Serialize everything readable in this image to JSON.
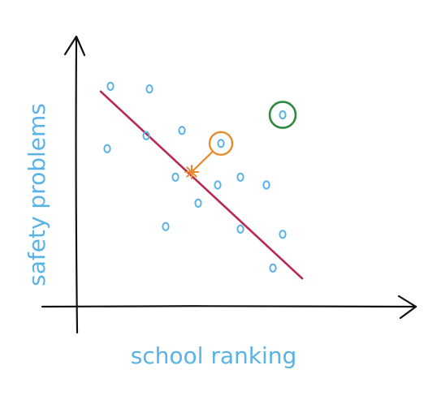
{
  "chart_data": {
    "type": "scatter",
    "title": "",
    "xlabel": "school ranking",
    "ylabel": "safety problems",
    "grid": false,
    "legend": "none",
    "xlim": [
      0,
      100
    ],
    "ylim": [
      0,
      100
    ],
    "points": [
      {
        "x": 9,
        "y": 83
      },
      {
        "x": 21,
        "y": 82
      },
      {
        "x": 8,
        "y": 59
      },
      {
        "x": 20,
        "y": 64
      },
      {
        "x": 31,
        "y": 66
      },
      {
        "x": 29,
        "y": 48
      },
      {
        "x": 43,
        "y": 61
      },
      {
        "x": 49,
        "y": 48
      },
      {
        "x": 42,
        "y": 45
      },
      {
        "x": 36,
        "y": 38
      },
      {
        "x": 57,
        "y": 45
      },
      {
        "x": 26,
        "y": 29
      },
      {
        "x": 49,
        "y": 28
      },
      {
        "x": 62,
        "y": 26
      },
      {
        "x": 59,
        "y": 13
      }
    ],
    "regression_line": {
      "x1": 6,
      "y1": 81,
      "x2": 68,
      "y2": 9
    },
    "highlighted_point": {
      "x": 43,
      "y": 61
    },
    "projection_point": {
      "x": 34,
      "y": 50
    },
    "outlier_point": {
      "x": 62,
      "y": 72
    },
    "colors": {
      "axis": "#111111",
      "point": "#5ab2e6",
      "label": "#5ab2e6",
      "line": "#b8294e",
      "highlight": "#e88a2e",
      "outlier": "#2f8a3f"
    }
  }
}
